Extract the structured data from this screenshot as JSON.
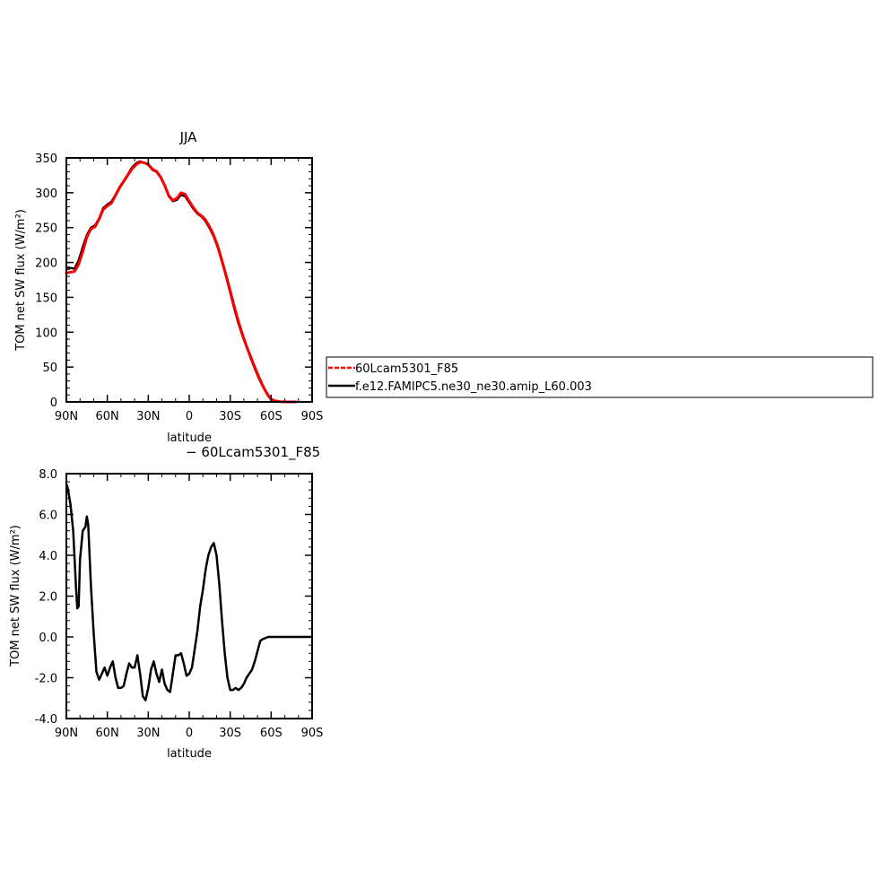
{
  "chart_data": [
    {
      "type": "line",
      "title": "JJA",
      "xlabel": "latitude",
      "ylabel": "TOM net SW flux (W/m²)",
      "xlim": [
        90,
        -90
      ],
      "ylim": [
        0,
        350
      ],
      "x_tick_labels": [
        "90N",
        "60N",
        "30N",
        "0",
        "30S",
        "60S",
        "90S"
      ],
      "y_tick_labels": [
        "0",
        "50",
        "100",
        "150",
        "200",
        "250",
        "300",
        "350"
      ],
      "legend": {
        "placement": "right"
      },
      "series": [
        {
          "name": "60Lcam5301_F85",
          "color": "#ff0000",
          "style": "dashed",
          "x": [
            90,
            87,
            84,
            81,
            78,
            75,
            72,
            69,
            66,
            63,
            60,
            57,
            54,
            51,
            48,
            45,
            42,
            39,
            36,
            33,
            30,
            27,
            24,
            21,
            18,
            15,
            12,
            9,
            6,
            3,
            0,
            -3,
            -6,
            -9,
            -12,
            -15,
            -18,
            -21,
            -24,
            -27,
            -30,
            -33,
            -36,
            -39,
            -42,
            -45,
            -48,
            -51,
            -54,
            -57,
            -60,
            -63,
            -66,
            -69,
            -72,
            -75,
            -78
          ],
          "y": [
            185,
            186,
            187,
            197,
            215,
            236,
            248,
            251,
            262,
            276,
            281,
            285,
            296,
            307,
            316,
            325,
            334,
            340,
            344,
            343,
            341,
            334,
            331,
            323,
            311,
            296,
            289,
            292,
            300,
            298,
            288,
            279,
            271,
            267,
            261,
            251,
            239,
            223,
            203,
            182,
            160,
            137,
            116,
            97,
            80,
            65,
            50,
            36,
            23,
            12,
            4,
            1.5,
            0.5,
            0,
            0,
            0,
            0
          ]
        },
        {
          "name": "f.e12.FAMIPC5.ne30_ne30.amip_L60.003",
          "color": "#000000",
          "style": "solid",
          "x": [
            90,
            87,
            84,
            81,
            78,
            75,
            72,
            69,
            66,
            63,
            60,
            57,
            54,
            51,
            48,
            45,
            42,
            39,
            36,
            33,
            30,
            27,
            24,
            21,
            18,
            15,
            12,
            9,
            6,
            3,
            0,
            -3,
            -6,
            -9,
            -12,
            -15,
            -18,
            -21,
            -24,
            -27,
            -30,
            -33,
            -36,
            -39,
            -42,
            -45,
            -48,
            -51,
            -54,
            -57,
            -60,
            -63,
            -66,
            -69,
            -72,
            -75,
            -78
          ],
          "y": [
            193,
            192,
            191,
            203,
            222,
            239,
            250,
            253,
            263,
            278,
            283,
            287,
            297,
            308,
            317,
            326,
            336,
            342,
            345,
            343,
            340,
            333,
            330,
            322,
            310,
            295,
            288,
            290,
            297,
            295,
            286,
            277,
            270,
            266,
            259,
            249,
            237,
            221,
            201,
            180,
            157,
            134,
            113,
            95,
            79,
            63,
            48,
            34,
            22,
            11,
            3,
            1,
            0.5,
            0,
            0,
            0,
            0
          ]
        }
      ]
    },
    {
      "type": "line",
      "title": "− 60Lcam5301_F85",
      "xlabel": "latitude",
      "ylabel": "TOM net SW flux (W/m²)",
      "xlim": [
        90,
        -90
      ],
      "ylim": [
        -4,
        8
      ],
      "x_tick_labels": [
        "90N",
        "60N",
        "30N",
        "0",
        "30S",
        "60S",
        "90S"
      ],
      "y_tick_labels": [
        "-4.0",
        "-2.0",
        "0.0",
        "2.0",
        "4.0",
        "6.0",
        "8.0"
      ],
      "series": [
        {
          "name": "",
          "color": "#000000",
          "style": "solid",
          "x": [
            90,
            89,
            87,
            85,
            83,
            82,
            81,
            80,
            78,
            76,
            75,
            74,
            72,
            70,
            68,
            66,
            64,
            62,
            60,
            58,
            56,
            54,
            52,
            50,
            48,
            46,
            44,
            42,
            40,
            38,
            36,
            34,
            32,
            30,
            28,
            26,
            24,
            22,
            20,
            18,
            16,
            14,
            12,
            10,
            8,
            6,
            4,
            2,
            0,
            -2,
            -4,
            -6,
            -8,
            -10,
            -12,
            -14,
            -16,
            -18,
            -20,
            -22,
            -24,
            -26,
            -28,
            -30,
            -32,
            -34,
            -36,
            -38,
            -40,
            -42,
            -44,
            -46,
            -48,
            -50,
            -52,
            -54,
            -56,
            -58,
            -60,
            -62,
            -64,
            -66,
            -68,
            -70,
            -72,
            -74,
            -76,
            -78,
            -80,
            -82,
            -84,
            -86,
            -88,
            -90
          ],
          "y": [
            7.5,
            7.3,
            6.5,
            5.2,
            2.5,
            1.4,
            1.5,
            3.8,
            5.2,
            5.4,
            5.9,
            5.5,
            2.5,
            0.2,
            -1.7,
            -2.1,
            -1.8,
            -1.5,
            -1.9,
            -1.5,
            -1.2,
            -2.0,
            -2.5,
            -2.5,
            -2.4,
            -1.8,
            -1.3,
            -1.5,
            -1.5,
            -0.9,
            -1.8,
            -2.9,
            -3.1,
            -2.5,
            -1.6,
            -1.2,
            -1.8,
            -2.2,
            -1.6,
            -2.3,
            -2.6,
            -2.7,
            -1.8,
            -0.9,
            -0.9,
            -0.8,
            -1.3,
            -1.9,
            -1.8,
            -1.5,
            -0.6,
            0.3,
            1.5,
            2.3,
            3.3,
            4.0,
            4.4,
            4.6,
            4.0,
            2.6,
            0.8,
            -0.8,
            -2.0,
            -2.6,
            -2.6,
            -2.5,
            -2.6,
            -2.5,
            -2.3,
            -2.0,
            -1.8,
            -1.6,
            -1.2,
            -0.7,
            -0.2,
            -0.1,
            -0.05,
            0,
            0,
            0,
            0,
            0,
            0,
            0,
            0,
            0,
            0,
            0,
            0,
            0,
            0,
            0,
            0,
            0
          ]
        }
      ]
    }
  ]
}
